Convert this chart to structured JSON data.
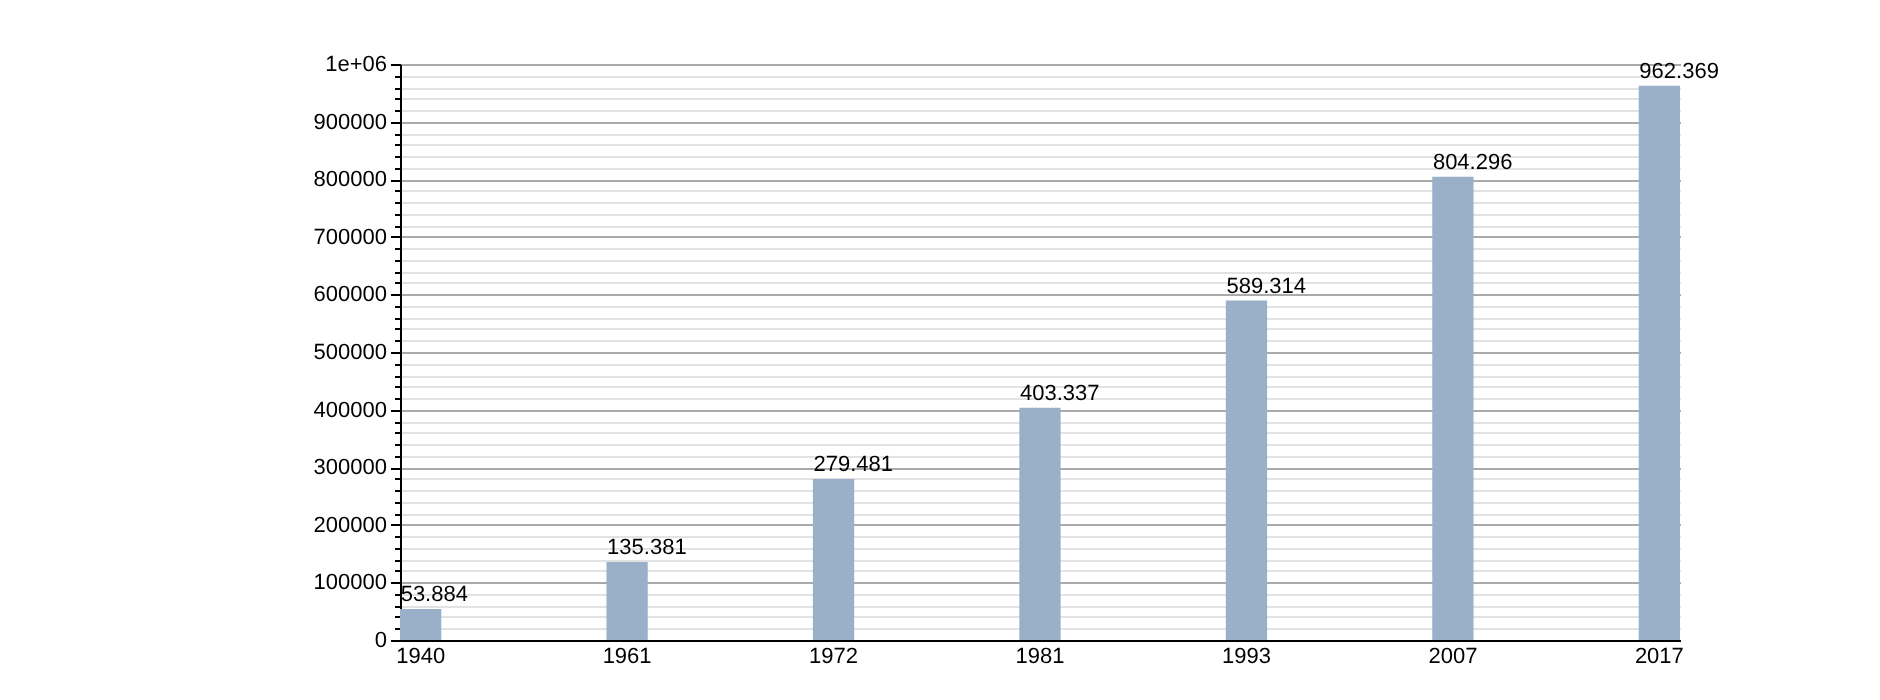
{
  "chart_data": {
    "type": "bar",
    "categories": [
      "1940",
      "1961",
      "1972",
      "1981",
      "1993",
      "2007",
      "2017"
    ],
    "values": [
      53884,
      135381,
      279481,
      403337,
      589314,
      804296,
      962369
    ],
    "value_labels": [
      "53.884",
      "135.381",
      "279.481",
      "403.337",
      "589.314",
      "804.296",
      "962.369"
    ],
    "color": "#9ab0c9",
    "ylim": [
      0,
      1000000
    ],
    "yticks": [
      0,
      {
        "value": 20000,
        "label": null
      },
      {
        "value": 40000,
        "label": null
      },
      {
        "value": 60000,
        "label": null
      },
      {
        "value": 80000,
        "label": null
      },
      100000,
      {
        "value": 120000,
        "label": null
      },
      {
        "value": 140000,
        "label": null
      },
      {
        "value": 160000,
        "label": null
      },
      {
        "value": 180000,
        "label": null
      },
      200000,
      {
        "value": 220000,
        "label": null
      },
      {
        "value": 240000,
        "label": null
      },
      {
        "value": 260000,
        "label": null
      },
      {
        "value": 280000,
        "label": null
      },
      300000,
      {
        "value": 320000,
        "label": null
      },
      {
        "value": 340000,
        "label": null
      },
      {
        "value": 360000,
        "label": null
      },
      {
        "value": 380000,
        "label": null
      },
      400000,
      {
        "value": 420000,
        "label": null
      },
      {
        "value": 440000,
        "label": null
      },
      {
        "value": 460000,
        "label": null
      },
      {
        "value": 480000,
        "label": null
      },
      500000,
      {
        "value": 520000,
        "label": null
      },
      {
        "value": 540000,
        "label": null
      },
      {
        "value": 560000,
        "label": null
      },
      {
        "value": 580000,
        "label": null
      },
      600000,
      {
        "value": 620000,
        "label": null
      },
      {
        "value": 640000,
        "label": null
      },
      {
        "value": 660000,
        "label": null
      },
      {
        "value": 680000,
        "label": null
      },
      700000,
      {
        "value": 720000,
        "label": null
      },
      {
        "value": 740000,
        "label": null
      },
      {
        "value": 760000,
        "label": null
      },
      {
        "value": 780000,
        "label": null
      },
      800000,
      {
        "value": 820000,
        "label": null
      },
      {
        "value": 840000,
        "label": null
      },
      {
        "value": 860000,
        "label": null
      },
      {
        "value": 880000,
        "label": null
      },
      900000,
      {
        "value": 920000,
        "label": null
      },
      {
        "value": 940000,
        "label": null
      },
      {
        "value": 960000,
        "label": null
      },
      {
        "value": 980000,
        "label": null
      },
      {
        "value": 1000000,
        "label": "1e+06"
      }
    ],
    "grid": "y"
  }
}
